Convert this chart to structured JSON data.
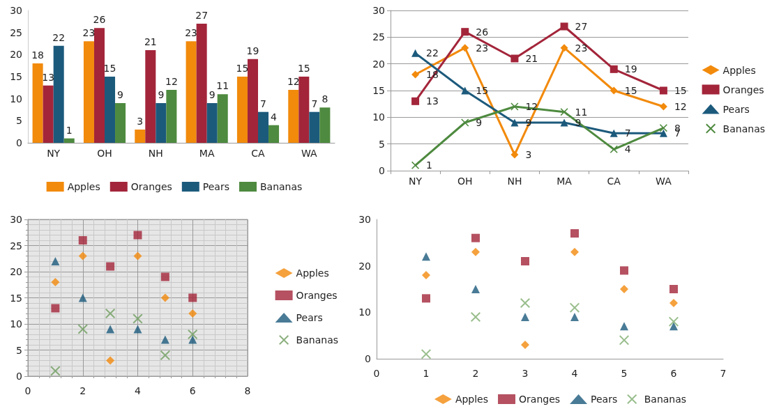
{
  "chart_data": [
    {
      "type": "bar",
      "categories": [
        "NY",
        "OH",
        "NH",
        "MA",
        "CA",
        "WA"
      ],
      "ylim": [
        0,
        30
      ],
      "yticks": [
        0,
        5,
        10,
        15,
        20,
        25,
        30
      ],
      "grid": false,
      "legend": "bottom",
      "data_labels": true,
      "series": [
        {
          "name": "Apples",
          "color": "#f28a0c",
          "values": [
            18,
            23,
            3,
            23,
            15,
            12
          ]
        },
        {
          "name": "Oranges",
          "color": "#a3253a",
          "values": [
            13,
            26,
            21,
            27,
            19,
            15
          ]
        },
        {
          "name": "Pears",
          "color": "#1c5a7c",
          "values": [
            22,
            15,
            9,
            9,
            7,
            7
          ]
        },
        {
          "name": "Bananas",
          "color": "#4e8a3f",
          "values": [
            1,
            9,
            12,
            11,
            4,
            8
          ]
        }
      ]
    },
    {
      "type": "line",
      "categories": [
        "NY",
        "OH",
        "NH",
        "MA",
        "CA",
        "WA"
      ],
      "ylim": [
        0,
        30
      ],
      "yticks": [
        0,
        5,
        10,
        15,
        20,
        25,
        30
      ],
      "grid": "y",
      "legend": "right",
      "data_labels": true,
      "series": [
        {
          "name": "Apples",
          "color": "#f28a0c",
          "marker": "diamond",
          "values": [
            18,
            23,
            3,
            23,
            15,
            12
          ]
        },
        {
          "name": "Oranges",
          "color": "#a3253a",
          "marker": "square",
          "values": [
            13,
            26,
            21,
            27,
            19,
            15
          ]
        },
        {
          "name": "Pears",
          "color": "#1c5a7c",
          "marker": "triangle",
          "values": [
            22,
            15,
            9,
            9,
            7,
            7
          ]
        },
        {
          "name": "Bananas",
          "color": "#4e8a3f",
          "marker": "cross",
          "values": [
            1,
            9,
            12,
            11,
            4,
            8
          ]
        }
      ]
    },
    {
      "type": "scatter",
      "x": [
        1,
        2,
        3,
        4,
        5,
        6
      ],
      "xlim": [
        0,
        8
      ],
      "xticks": [
        0,
        2,
        4,
        6,
        8
      ],
      "ylim": [
        0,
        30
      ],
      "yticks": [
        0,
        5,
        10,
        15,
        20,
        25,
        30
      ],
      "grid": true,
      "legend": "right",
      "series": [
        {
          "name": "Apples",
          "color": "#f28a0c",
          "marker": "diamond",
          "values": [
            18,
            23,
            3,
            23,
            15,
            12
          ]
        },
        {
          "name": "Oranges",
          "color": "#a3253a",
          "marker": "square",
          "values": [
            13,
            26,
            21,
            27,
            19,
            15
          ]
        },
        {
          "name": "Pears",
          "color": "#1c5a7c",
          "marker": "triangle",
          "values": [
            22,
            15,
            9,
            9,
            7,
            7
          ]
        },
        {
          "name": "Bananas",
          "color": "#6f9e5f",
          "marker": "cross",
          "values": [
            1,
            9,
            12,
            11,
            4,
            8
          ]
        }
      ]
    },
    {
      "type": "scatter",
      "x": [
        1,
        2,
        3,
        4,
        5,
        6
      ],
      "xlim": [
        0,
        7
      ],
      "xticks": [
        0,
        1,
        2,
        3,
        4,
        5,
        6,
        7
      ],
      "ylim": [
        0,
        30
      ],
      "yticks": [
        0,
        10,
        20,
        30
      ],
      "grid": false,
      "legend": "bottom",
      "series": [
        {
          "name": "Apples",
          "color": "#f28a0c",
          "marker": "diamond",
          "values": [
            18,
            23,
            3,
            23,
            15,
            12
          ]
        },
        {
          "name": "Oranges",
          "color": "#a3253a",
          "marker": "square",
          "values": [
            13,
            26,
            21,
            27,
            19,
            15
          ]
        },
        {
          "name": "Pears",
          "color": "#1c5a7c",
          "marker": "triangle",
          "values": [
            22,
            15,
            9,
            9,
            7,
            7
          ]
        },
        {
          "name": "Bananas",
          "color": "#7fae6f",
          "marker": "cross",
          "values": [
            1,
            9,
            12,
            11,
            4,
            8
          ]
        }
      ]
    }
  ]
}
